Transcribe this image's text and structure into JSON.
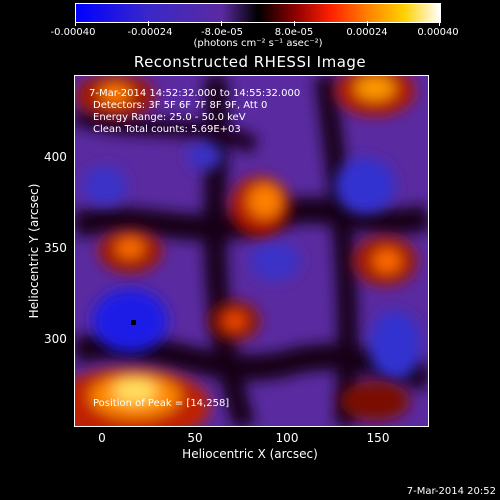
{
  "colorbar": {
    "tick_labels": [
      "-0.00040",
      "-0.00024",
      "-8.0e-05",
      "8.0e-05",
      "0.00024",
      "0.00040"
    ],
    "units": "(photons cm⁻² s⁻¹ asec⁻²)",
    "colors": [
      "#0000ff",
      "#3a28c8",
      "#5a2aa0",
      "#000000",
      "#8a0000",
      "#ff2000",
      "#ff8000",
      "#ffd000",
      "#ffffff"
    ]
  },
  "plot": {
    "title": "Reconstructed RHESSI Image",
    "xlabel": "Heliocentric X (arcsec)",
    "ylabel": "Heliocentric Y (arcsec)",
    "x_ticks": [
      "0",
      "50",
      "100",
      "150"
    ],
    "y_ticks": [
      "400",
      "350",
      "300"
    ]
  },
  "annotations": {
    "time_range": "7-Mar-2014 14:52:32.000 to 14:55:32.000",
    "detectors": "Detectors: 3F 5F 6F 7F 8F 9F, Att 0",
    "energy": "Energy Range: 25.0 - 50.0 keV",
    "clean": "Clean     Total counts: 5.69E+03",
    "peak": "Position of Peak = [14,258]"
  },
  "footer": {
    "timestamp": "7-Mar-2014 20:52"
  }
}
